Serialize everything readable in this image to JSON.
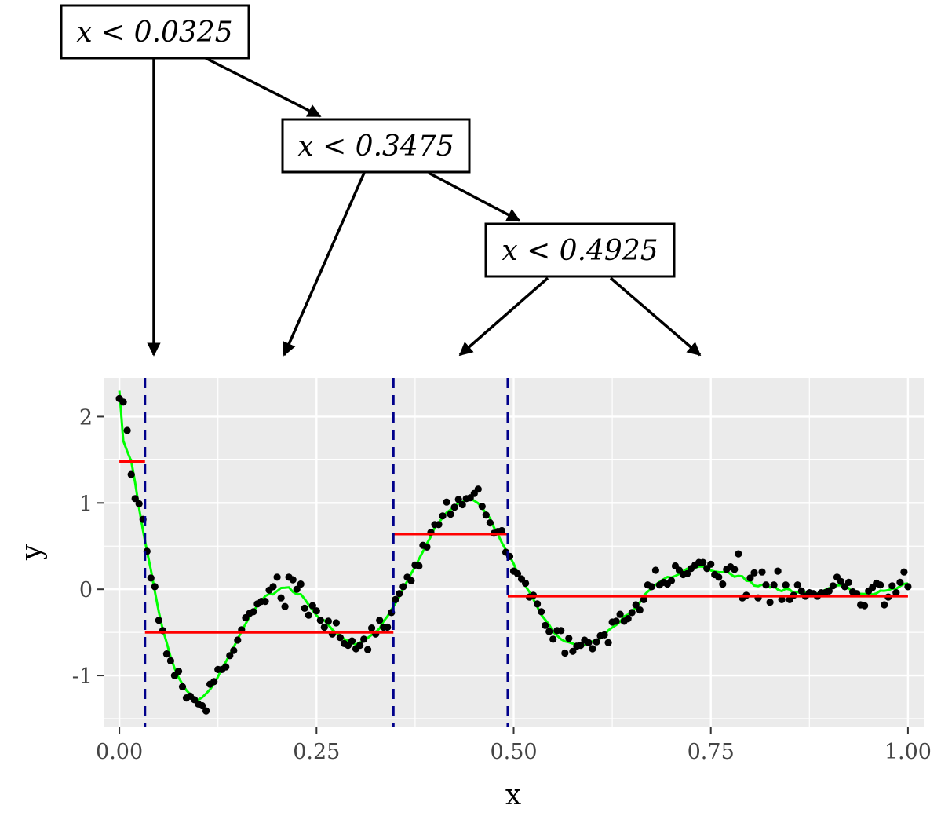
{
  "tree": {
    "nodes": [
      {
        "label": "x < 0.0325"
      },
      {
        "label": "x < 0.3475"
      },
      {
        "label": "x < 0.4925"
      }
    ]
  },
  "chart_data": {
    "type": "scatter",
    "xlabel": "x",
    "ylabel": "y",
    "xlim": [
      -0.02,
      1.02
    ],
    "ylim": [
      -1.6,
      2.45
    ],
    "x_ticks": [
      0,
      0.25,
      0.5,
      0.75,
      1
    ],
    "x_tick_labels": [
      "0.00",
      "0.25",
      "0.50",
      "0.75",
      "1.00"
    ],
    "y_ticks": [
      -1,
      0,
      1,
      2
    ],
    "y_tick_labels": [
      "-1",
      "0",
      "1",
      "2"
    ],
    "grid": true,
    "split_points": [
      0.0325,
      0.3475,
      0.4925
    ],
    "step_fit": [
      {
        "x0": 0.0,
        "x1": 0.0325,
        "y": 1.48
      },
      {
        "x0": 0.0325,
        "x1": 0.3475,
        "y": -0.5
      },
      {
        "x0": 0.3475,
        "x1": 0.4925,
        "y": 0.64
      },
      {
        "x0": 0.4925,
        "x1": 1.0,
        "y": -0.08
      }
    ],
    "colors": {
      "points": "#000000",
      "true_curve": "#00ff00",
      "step_fit": "#ff0000",
      "split_lines": "#00008b",
      "panel": "#ebebeb",
      "grid": "#ffffff"
    },
    "points": [
      [
        0.0,
        2.21
      ],
      [
        0.005,
        2.17
      ],
      [
        0.01,
        1.84
      ],
      [
        0.015,
        1.33
      ],
      [
        0.02,
        1.05
      ],
      [
        0.025,
        0.99
      ],
      [
        0.03,
        0.81
      ],
      [
        0.035,
        0.44
      ],
      [
        0.04,
        0.13
      ],
      [
        0.045,
        0.03
      ],
      [
        0.05,
        -0.36
      ],
      [
        0.055,
        -0.48
      ],
      [
        0.06,
        -0.75
      ],
      [
        0.065,
        -0.83
      ],
      [
        0.07,
        -1.0
      ],
      [
        0.075,
        -0.95
      ],
      [
        0.08,
        -1.13
      ],
      [
        0.085,
        -1.26
      ],
      [
        0.09,
        -1.24
      ],
      [
        0.095,
        -1.28
      ],
      [
        0.1,
        -1.33
      ],
      [
        0.105,
        -1.35
      ],
      [
        0.11,
        -1.41
      ],
      [
        0.115,
        -1.1
      ],
      [
        0.12,
        -1.07
      ],
      [
        0.125,
        -0.93
      ],
      [
        0.13,
        -0.93
      ],
      [
        0.135,
        -0.9
      ],
      [
        0.14,
        -0.77
      ],
      [
        0.145,
        -0.71
      ],
      [
        0.15,
        -0.59
      ],
      [
        0.155,
        -0.47
      ],
      [
        0.16,
        -0.33
      ],
      [
        0.165,
        -0.28
      ],
      [
        0.17,
        -0.26
      ],
      [
        0.175,
        -0.17
      ],
      [
        0.18,
        -0.14
      ],
      [
        0.185,
        -0.14
      ],
      [
        0.19,
        -0.01
      ],
      [
        0.195,
        0.03
      ],
      [
        0.2,
        0.14
      ],
      [
        0.205,
        -0.1
      ],
      [
        0.21,
        -0.2
      ],
      [
        0.215,
        0.14
      ],
      [
        0.22,
        0.11
      ],
      [
        0.225,
        0.0
      ],
      [
        0.23,
        0.06
      ],
      [
        0.235,
        -0.22
      ],
      [
        0.24,
        -0.3
      ],
      [
        0.245,
        -0.19
      ],
      [
        0.25,
        -0.25
      ],
      [
        0.255,
        -0.36
      ],
      [
        0.26,
        -0.44
      ],
      [
        0.265,
        -0.37
      ],
      [
        0.27,
        -0.52
      ],
      [
        0.275,
        -0.39
      ],
      [
        0.28,
        -0.56
      ],
      [
        0.285,
        -0.63
      ],
      [
        0.29,
        -0.65
      ],
      [
        0.295,
        -0.6
      ],
      [
        0.3,
        -0.69
      ],
      [
        0.305,
        -0.65
      ],
      [
        0.31,
        -0.58
      ],
      [
        0.315,
        -0.7
      ],
      [
        0.32,
        -0.45
      ],
      [
        0.325,
        -0.52
      ],
      [
        0.33,
        -0.36
      ],
      [
        0.335,
        -0.44
      ],
      [
        0.34,
        -0.44
      ],
      [
        0.345,
        -0.27
      ],
      [
        0.35,
        -0.12
      ],
      [
        0.355,
        -0.05
      ],
      [
        0.36,
        0.03
      ],
      [
        0.365,
        0.14
      ],
      [
        0.37,
        0.1
      ],
      [
        0.375,
        0.28
      ],
      [
        0.38,
        0.27
      ],
      [
        0.385,
        0.51
      ],
      [
        0.39,
        0.49
      ],
      [
        0.395,
        0.66
      ],
      [
        0.4,
        0.75
      ],
      [
        0.405,
        0.75
      ],
      [
        0.41,
        0.85
      ],
      [
        0.415,
        1.01
      ],
      [
        0.42,
        0.87
      ],
      [
        0.425,
        0.95
      ],
      [
        0.43,
        1.04
      ],
      [
        0.435,
        0.98
      ],
      [
        0.44,
        1.05
      ],
      [
        0.445,
        1.06
      ],
      [
        0.45,
        1.11
      ],
      [
        0.455,
        1.16
      ],
      [
        0.46,
        0.96
      ],
      [
        0.465,
        0.86
      ],
      [
        0.47,
        0.77
      ],
      [
        0.475,
        0.65
      ],
      [
        0.48,
        0.67
      ],
      [
        0.485,
        0.68
      ],
      [
        0.49,
        0.43
      ],
      [
        0.495,
        0.38
      ],
      [
        0.5,
        0.21
      ],
      [
        0.505,
        0.18
      ],
      [
        0.51,
        0.12
      ],
      [
        0.515,
        0.07
      ],
      [
        0.52,
        -0.09
      ],
      [
        0.525,
        -0.07
      ],
      [
        0.53,
        -0.17
      ],
      [
        0.535,
        -0.26
      ],
      [
        0.54,
        -0.42
      ],
      [
        0.545,
        -0.49
      ],
      [
        0.55,
        -0.58
      ],
      [
        0.555,
        -0.48
      ],
      [
        0.56,
        -0.48
      ],
      [
        0.565,
        -0.74
      ],
      [
        0.57,
        -0.57
      ],
      [
        0.575,
        -0.72
      ],
      [
        0.58,
        -0.66
      ],
      [
        0.585,
        -0.65
      ],
      [
        0.59,
        -0.59
      ],
      [
        0.595,
        -0.62
      ],
      [
        0.6,
        -0.69
      ],
      [
        0.605,
        -0.61
      ],
      [
        0.61,
        -0.54
      ],
      [
        0.615,
        -0.53
      ],
      [
        0.62,
        -0.62
      ],
      [
        0.625,
        -0.38
      ],
      [
        0.63,
        -0.37
      ],
      [
        0.635,
        -0.29
      ],
      [
        0.64,
        -0.37
      ],
      [
        0.645,
        -0.34
      ],
      [
        0.65,
        -0.27
      ],
      [
        0.655,
        -0.18
      ],
      [
        0.66,
        -0.24
      ],
      [
        0.665,
        -0.12
      ],
      [
        0.67,
        0.05
      ],
      [
        0.675,
        0.03
      ],
      [
        0.68,
        0.22
      ],
      [
        0.685,
        0.05
      ],
      [
        0.69,
        0.08
      ],
      [
        0.695,
        0.06
      ],
      [
        0.7,
        0.1
      ],
      [
        0.705,
        0.27
      ],
      [
        0.71,
        0.22
      ],
      [
        0.715,
        0.17
      ],
      [
        0.72,
        0.18
      ],
      [
        0.725,
        0.24
      ],
      [
        0.73,
        0.28
      ],
      [
        0.735,
        0.31
      ],
      [
        0.74,
        0.31
      ],
      [
        0.745,
        0.24
      ],
      [
        0.75,
        0.29
      ],
      [
        0.755,
        0.17
      ],
      [
        0.76,
        0.14
      ],
      [
        0.765,
        0.06
      ],
      [
        0.77,
        0.23
      ],
      [
        0.775,
        0.26
      ],
      [
        0.78,
        0.23
      ],
      [
        0.785,
        0.41
      ],
      [
        0.79,
        -0.1
      ],
      [
        0.795,
        -0.07
      ],
      [
        0.8,
        0.13
      ],
      [
        0.805,
        0.19
      ],
      [
        0.81,
        -0.1
      ],
      [
        0.815,
        0.2
      ],
      [
        0.82,
        0.05
      ],
      [
        0.825,
        -0.15
      ],
      [
        0.83,
        0.05
      ],
      [
        0.835,
        0.21
      ],
      [
        0.84,
        -0.12
      ],
      [
        0.845,
        0.05
      ],
      [
        0.85,
        -0.12
      ],
      [
        0.855,
        -0.07
      ],
      [
        0.86,
        0.05
      ],
      [
        0.865,
        -0.02
      ],
      [
        0.87,
        -0.08
      ],
      [
        0.875,
        -0.04
      ],
      [
        0.88,
        -0.05
      ],
      [
        0.885,
        -0.08
      ],
      [
        0.89,
        -0.04
      ],
      [
        0.895,
        -0.04
      ],
      [
        0.9,
        -0.02
      ],
      [
        0.905,
        0.04
      ],
      [
        0.91,
        0.14
      ],
      [
        0.915,
        0.09
      ],
      [
        0.92,
        0.03
      ],
      [
        0.925,
        0.08
      ],
      [
        0.93,
        -0.03
      ],
      [
        0.935,
        -0.05
      ],
      [
        0.94,
        -0.18
      ],
      [
        0.945,
        -0.19
      ],
      [
        0.95,
        -0.02
      ],
      [
        0.955,
        0.02
      ],
      [
        0.96,
        0.07
      ],
      [
        0.965,
        0.05
      ],
      [
        0.97,
        -0.18
      ],
      [
        0.975,
        -0.09
      ],
      [
        0.98,
        0.04
      ],
      [
        0.985,
        -0.04
      ],
      [
        0.99,
        0.08
      ],
      [
        0.995,
        0.2
      ],
      [
        1.0,
        0.03
      ]
    ]
  }
}
